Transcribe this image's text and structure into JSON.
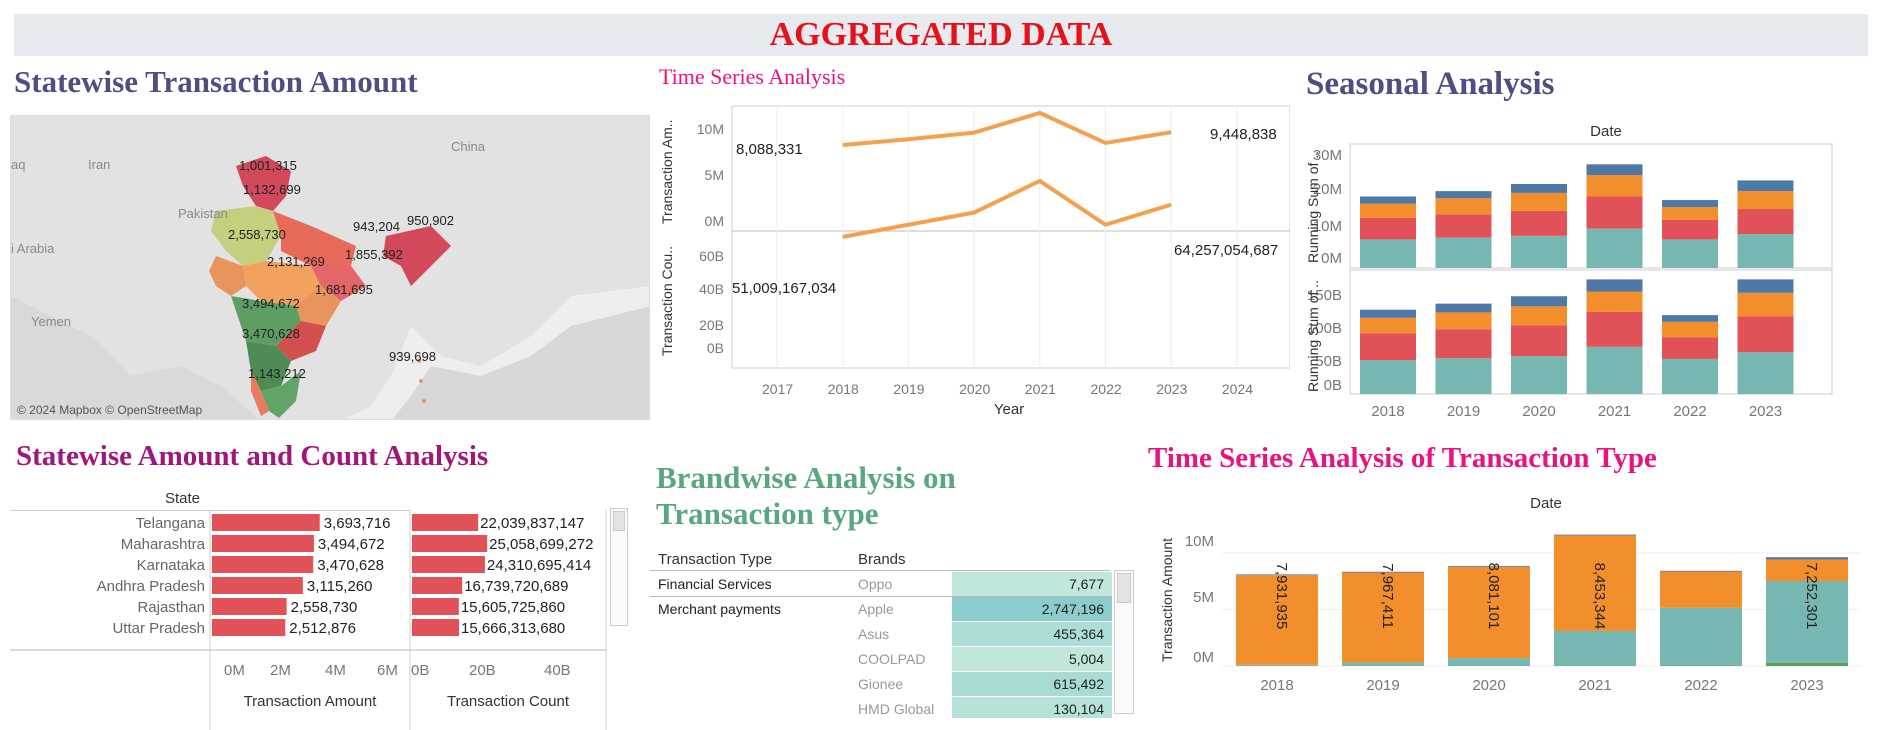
{
  "banner": {
    "title": "AGGREGATED DATA"
  },
  "colors": {
    "banner_red": "#e8101a",
    "title_navy": "#4e4e84",
    "title_pink": "#e8137f",
    "title_purple": "#a0167a",
    "title_green": "#58a780",
    "line_orange": "#f4a14f",
    "bar_red": "#e05257",
    "teal": "#76b7b2",
    "orange": "#f28e2b",
    "blue": "#4e79a7",
    "green": "#59a14f"
  },
  "map": {
    "title": "Statewise Transaction Amount",
    "attribution": "© 2024 Mapbox © OpenStreetMap",
    "place_names": [
      "Iran",
      "China",
      "Pakistan",
      "Yemen",
      "aq",
      "i Arabia"
    ],
    "labels": [
      "1,001,315",
      "1,132,699",
      "2,558,730",
      "943,204",
      "950,902",
      "1,855,392",
      "2,131,269",
      "1,681,695",
      "3,494,672",
      "3,470,628",
      "939,698",
      "1,143,212"
    ]
  },
  "time_series": {
    "title": "Time Series Analysis",
    "xlabel": "Year",
    "ylabel_top": "Transaction Am..",
    "ylabel_bottom": "Transaction Cou..",
    "x_ticks": [
      "2017",
      "2018",
      "2019",
      "2020",
      "2021",
      "2022",
      "2023",
      "2024"
    ],
    "top_ticks": [
      "10M",
      "5M",
      "0M"
    ],
    "bottom_ticks": [
      "60B",
      "40B",
      "20B",
      "0B"
    ],
    "label_amount_first": "8,088,331",
    "label_amount_last": "9,448,838",
    "label_count_first": "51,009,167,034",
    "label_count_last": "64,257,054,687"
  },
  "seasonal": {
    "title": "Seasonal Analysis",
    "header": "Date",
    "ylabel": "Running Sum of ..",
    "top_ticks": [
      "30M",
      "20M",
      "10M",
      "0M"
    ],
    "bottom_ticks": [
      "150B",
      "100B",
      "50B",
      "0B"
    ],
    "x_ticks": [
      "2018",
      "2019",
      "2020",
      "2021",
      "2022",
      "2023"
    ]
  },
  "statewise_table": {
    "title": "Statewise Amount and  Count Analysis",
    "column_header": "State",
    "xlabel_amount": "Transaction Amount",
    "xlabel_count": "Transaction Count",
    "amount_ticks": [
      "0M",
      "2M",
      "4M",
      "6M"
    ],
    "count_ticks": [
      "0B",
      "20B",
      "40B"
    ],
    "rows": [
      {
        "state": "Telangana",
        "amount": "3,693,716",
        "count": "22,039,837,147"
      },
      {
        "state": "Maharashtra",
        "amount": "3,494,672",
        "count": "25,058,699,272"
      },
      {
        "state": "Karnataka",
        "amount": "3,470,628",
        "count": "24,310,695,414"
      },
      {
        "state": "Andhra Pradesh",
        "amount": "3,115,260",
        "count": "16,739,720,689"
      },
      {
        "state": "Rajasthan",
        "amount": "2,558,730",
        "count": "15,605,725,860"
      },
      {
        "state": "Uttar Pradesh",
        "amount": "2,512,876",
        "count": "15,666,313,680"
      }
    ]
  },
  "brandwise": {
    "title_line1": "Brandwise Analysis on",
    "title_line2": "Transaction type",
    "col_type": "Transaction Type",
    "col_brand": "Brands",
    "rows": [
      {
        "type": "Financial Services",
        "brand": "Oppo",
        "value": "7,677"
      },
      {
        "type": "Merchant payments",
        "brand": "Apple",
        "value": "2,747,196"
      },
      {
        "type": "",
        "brand": "Asus",
        "value": "455,364"
      },
      {
        "type": "",
        "brand": "COOLPAD",
        "value": "5,004"
      },
      {
        "type": "",
        "brand": "Gionee",
        "value": "615,492"
      },
      {
        "type": "",
        "brand": "HMD Global",
        "value": "130,104"
      }
    ]
  },
  "tx_type_series": {
    "title": "Time  Series Analysis of Transaction Type",
    "header": "Date",
    "ylabel": "Transaction Amount",
    "y_ticks": [
      "10M",
      "5M",
      "0M"
    ],
    "x_ticks": [
      "2018",
      "2019",
      "2020",
      "2021",
      "2022",
      "2023"
    ],
    "bar_labels": [
      "7,931,935",
      "7,967,411",
      "8,081,101",
      "8,453,344",
      "7,252,301"
    ]
  },
  "chart_data": [
    {
      "type": "line",
      "title": "Time Series Analysis",
      "xlabel": "Year",
      "x": [
        2018,
        2019,
        2020,
        2021,
        2022,
        2023
      ],
      "series": [
        {
          "name": "Transaction Amount",
          "values": [
            8088331,
            8700000,
            9400000,
            11500000,
            8300000,
            9448838
          ]
        },
        {
          "name": "Transaction Count",
          "values": [
            51009167034,
            56000000000,
            61000000000,
            74000000000,
            56000000000,
            64257054687
          ]
        }
      ]
    },
    {
      "type": "bar",
      "title": "Seasonal Analysis",
      "categories": [
        "2018",
        "2019",
        "2020",
        "2021",
        "2022",
        "2023"
      ],
      "stacked": true,
      "panels": [
        {
          "ylabel": "Running Sum of ..",
          "ylim": [
            0,
            33000000
          ],
          "series": [
            {
              "values": [
                8000000,
                8500000,
                9000000,
                11000000,
                8000000,
                9500000
              ]
            },
            {
              "values": [
                6000000,
                6500000,
                7000000,
                9000000,
                5500000,
                7000000
              ]
            },
            {
              "values": [
                4000000,
                4500000,
                5000000,
                6000000,
                3500000,
                5000000
              ]
            },
            {
              "values": [
                2000000,
                2000000,
                2500000,
                3000000,
                2000000,
                3000000
              ]
            }
          ]
        },
        {
          "ylabel": "Running Sum of ..",
          "ylim": [
            0,
            175000000000
          ],
          "series": [
            {
              "values": [
                50000000000,
                53000000000,
                56000000000,
                70000000000,
                52000000000,
                62000000000
              ]
            },
            {
              "values": [
                40000000000,
                43000000000,
                46000000000,
                52000000000,
                32000000000,
                53000000000
              ]
            },
            {
              "values": [
                23000000000,
                25000000000,
                28000000000,
                30000000000,
                23000000000,
                35000000000
              ]
            },
            {
              "values": [
                12000000000,
                13000000000,
                15000000000,
                18000000000,
                10000000000,
                20000000000
              ]
            }
          ]
        }
      ]
    },
    {
      "type": "bar",
      "title": "Statewise Amount and  Count Analysis",
      "categories": [
        "Telangana",
        "Maharashtra",
        "Karnataka",
        "Andhra Pradesh",
        "Rajasthan",
        "Uttar Pradesh"
      ],
      "series": [
        {
          "name": "Transaction Amount",
          "values": [
            3693716,
            3494672,
            3470628,
            3115260,
            2558730,
            2512876
          ]
        },
        {
          "name": "Transaction Count",
          "values": [
            22039837147,
            25058699272,
            24310695414,
            16739720689,
            15605725860,
            15666313680
          ]
        }
      ]
    },
    {
      "type": "table",
      "title": "Brandwise Analysis on Transaction type",
      "columns": [
        "Transaction Type",
        "Brands",
        "Value"
      ],
      "rows": [
        [
          "Financial Services",
          "Oppo",
          7677
        ],
        [
          "Merchant payments",
          "Apple",
          2747196
        ],
        [
          "",
          "Asus",
          455364
        ],
        [
          "",
          "COOLPAD",
          5004
        ],
        [
          "",
          "Gionee",
          615492
        ],
        [
          "",
          "HMD Global",
          130104
        ]
      ]
    },
    {
      "type": "bar",
      "title": "Time  Series Analysis of Transaction Type",
      "categories": [
        "2018",
        "2019",
        "2020",
        "2021",
        "2022",
        "2023"
      ],
      "stacked": true,
      "ylabel": "Transaction Amount",
      "ylim": [
        0,
        11500000
      ],
      "series": [
        {
          "values": [
            0,
            0,
            0,
            0,
            50000,
            270000
          ]
        },
        {
          "values": [
            100000,
            300000,
            700000,
            3100000,
            5100000,
            7252301
          ]
        },
        {
          "values": [
            7931935,
            7967411,
            8081101,
            8453344,
            3200000,
            1900000
          ]
        },
        {
          "values": [
            70000,
            70000,
            70000,
            70000,
            70000,
            200000
          ]
        }
      ]
    }
  ]
}
